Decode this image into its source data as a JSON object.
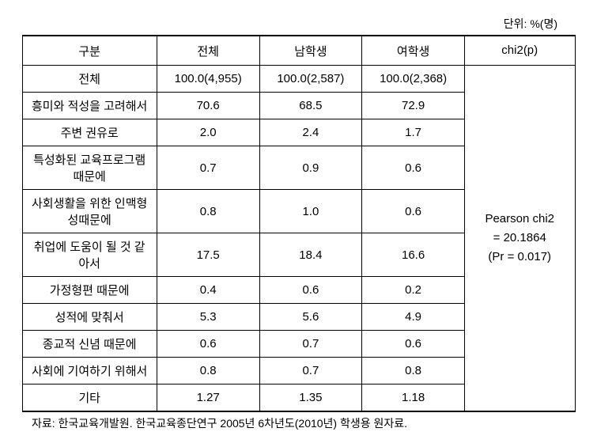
{
  "unit_label": "단위: %(명)",
  "headers": {
    "category": "구분",
    "total": "전체",
    "male": "남학생",
    "female": "여학생",
    "chi2": "chi2(p)"
  },
  "rows": [
    {
      "label": "전체",
      "total": "100.0(4,955)",
      "male": "100.0(2,587)",
      "female": "100.0(2,368)"
    },
    {
      "label": "흥미와 적성을 고려해서",
      "total": "70.6",
      "male": "68.5",
      "female": "72.9"
    },
    {
      "label": "주변 권유로",
      "total": "2.0",
      "male": "2.4",
      "female": "1.7"
    },
    {
      "label": "특성화된 교육프로그램 때문에",
      "total": "0.7",
      "male": "0.9",
      "female": "0.6"
    },
    {
      "label": "사회생활을 위한 인맥형성때문에",
      "total": "0.8",
      "male": "1.0",
      "female": "0.6"
    },
    {
      "label": "취업에 도움이 될 것 같아서",
      "total": "17.5",
      "male": "18.4",
      "female": "16.6"
    },
    {
      "label": "가정형편 때문에",
      "total": "0.4",
      "male": "0.6",
      "female": "0.2"
    },
    {
      "label": "성적에 맞춰서",
      "total": "5.3",
      "male": "5.6",
      "female": "4.9"
    },
    {
      "label": "종교적 신념 때문에",
      "total": "0.6",
      "male": "0.7",
      "female": "0.6"
    },
    {
      "label": "사회에 기여하기 위해서",
      "total": "0.8",
      "male": "0.7",
      "female": "0.8"
    },
    {
      "label": "기타",
      "total": "1.27",
      "male": "1.35",
      "female": "1.18"
    }
  ],
  "chi2_text": {
    "line1": "Pearson chi2",
    "line2": "= 20.1864",
    "line3": "(Pr = 0.017)"
  },
  "source": "자료: 한국교육개발원. 한국교육종단연구 2005년 6차년도(2010년) 학생용 원자료."
}
